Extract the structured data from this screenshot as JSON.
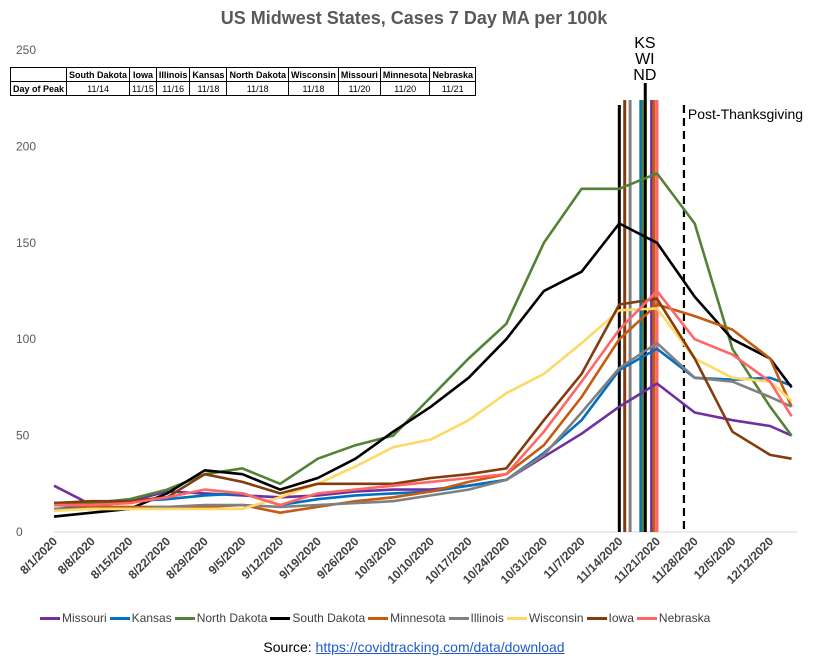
{
  "chart_data": {
    "type": "line",
    "title": "US Midwest States, Cases 7 Day MA per 100k",
    "xlabel": "",
    "ylabel": "",
    "ylim": [
      0,
      250
    ],
    "yticks": [
      0,
      50,
      100,
      150,
      200,
      250
    ],
    "xtick_labels": [
      "8/1/2020",
      "8/8/2020",
      "8/15/2020",
      "8/22/2020",
      "8/29/2020",
      "9/5/2020",
      "9/12/2020",
      "9/19/2020",
      "9/26/2020",
      "10/3/2020",
      "10/10/2020",
      "10/17/2020",
      "10/24/2020",
      "10/31/2020",
      "11/7/2020",
      "11/14/2020",
      "11/21/2020",
      "11/28/2020",
      "12/5/2020",
      "12/12/2020"
    ],
    "x": [
      "8/1",
      "8/8",
      "8/15",
      "8/22",
      "8/29",
      "9/5",
      "9/12",
      "9/19",
      "9/26",
      "10/3",
      "10/10",
      "10/17",
      "10/24",
      "10/31",
      "11/7",
      "11/14",
      "11/21",
      "11/28",
      "12/5",
      "12/12",
      "12/16"
    ],
    "series": [
      {
        "name": "Missouri",
        "color": "#7030a0",
        "values": [
          24,
          14,
          16,
          21,
          20,
          19,
          18,
          19,
          21,
          22,
          22,
          24,
          27,
          39,
          51,
          65,
          77,
          62,
          58,
          55,
          50
        ]
      },
      {
        "name": "Kansas",
        "color": "#0070c0",
        "values": [
          12,
          13,
          16,
          17,
          19,
          20,
          14,
          17,
          19,
          20,
          21,
          24,
          27,
          41,
          58,
          84,
          95,
          80,
          79,
          80,
          76
        ]
      },
      {
        "name": "North Dakota",
        "color": "#548235",
        "values": [
          15,
          15,
          17,
          22,
          30,
          33,
          25,
          38,
          45,
          50,
          70,
          90,
          108,
          150,
          178,
          178,
          186,
          160,
          95,
          65,
          50
        ]
      },
      {
        "name": "South Dakota",
        "color": "#000000",
        "values": [
          8,
          10,
          12,
          20,
          32,
          30,
          22,
          28,
          38,
          52,
          65,
          80,
          100,
          125,
          135,
          160,
          150,
          122,
          100,
          90,
          75
        ]
      },
      {
        "name": "Minnesota",
        "color": "#c55a11",
        "values": [
          14,
          13,
          13,
          13,
          13,
          14,
          10,
          13,
          16,
          18,
          21,
          26,
          30,
          45,
          70,
          100,
          118,
          112,
          105,
          90,
          65
        ]
      },
      {
        "name": "Illinois",
        "color": "#808080",
        "values": [
          12,
          12,
          12,
          13,
          14,
          14,
          13,
          14,
          15,
          16,
          19,
          22,
          27,
          40,
          62,
          85,
          98,
          80,
          78,
          70,
          65
        ]
      },
      {
        "name": "Wisconsin",
        "color": "#ffd966",
        "values": [
          11,
          12,
          12,
          12,
          12,
          12,
          18,
          25,
          34,
          44,
          48,
          58,
          72,
          82,
          98,
          115,
          116,
          90,
          80,
          78,
          68
        ]
      },
      {
        "name": "Iowa",
        "color": "#843c0c",
        "values": [
          15,
          16,
          16,
          18,
          30,
          26,
          20,
          25,
          25,
          25,
          28,
          30,
          33,
          58,
          82,
          118,
          121,
          90,
          52,
          40,
          38
        ]
      },
      {
        "name": "Nebraska",
        "color": "#ff6666",
        "values": [
          14,
          14,
          15,
          18,
          22,
          20,
          14,
          20,
          22,
          24,
          26,
          28,
          30,
          52,
          78,
          105,
          125,
          100,
          92,
          78,
          60
        ]
      }
    ],
    "vertical_lines": [
      {
        "date": "11/14",
        "color": "#000000",
        "dash": false
      },
      {
        "date": "11/15",
        "color": "#843c0c",
        "dash": false
      },
      {
        "date": "11/16",
        "color": "#808080",
        "dash": false
      },
      {
        "date": "11/18",
        "color": "#0070c0",
        "dash": false
      },
      {
        "date": "11/18",
        "color": "#548235",
        "dash": false
      },
      {
        "date": "11/18",
        "color": "#ffd966",
        "dash": false
      },
      {
        "date": "11/20",
        "color": "#7030a0",
        "dash": false
      },
      {
        "date": "11/20",
        "color": "#c55a11",
        "dash": false
      },
      {
        "date": "11/21",
        "color": "#ff6666",
        "dash": false
      },
      {
        "date": "11/26",
        "color": "#000000",
        "dash": true
      }
    ],
    "annotations": {
      "peak_label": [
        "KS",
        "WI",
        "ND"
      ],
      "post_thanksgiving": "Post-Thanksgiving"
    },
    "peak_table": {
      "row_label": "Day of Peak",
      "states": [
        "South Dakota",
        "Iowa",
        "Illinois",
        "Kansas",
        "North Dakota",
        "Wisconsin",
        "Missouri",
        "Minnesota",
        "Nebraska"
      ],
      "days": [
        "11/14",
        "11/15",
        "11/16",
        "11/18",
        "11/18",
        "11/18",
        "11/20",
        "11/20",
        "11/21"
      ]
    },
    "legend_position": "bottom",
    "grid": false
  },
  "source": {
    "label": "Source: ",
    "url_text": "https://covidtracking.com/data/download"
  }
}
